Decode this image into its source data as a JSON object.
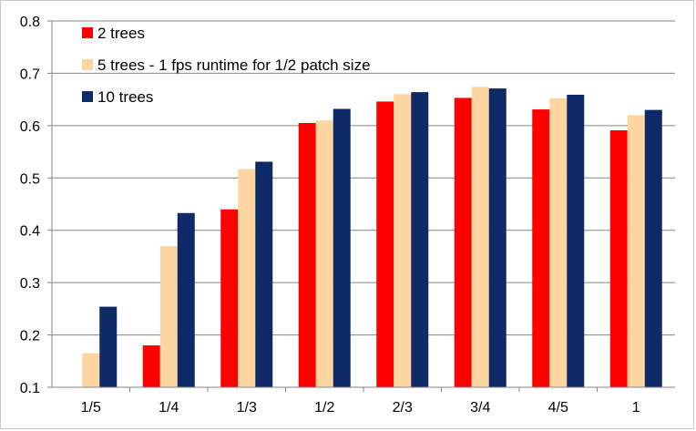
{
  "chart_data": {
    "type": "bar",
    "categories": [
      "1/5",
      "1/4",
      "1/3",
      "1/2",
      "2/3",
      "3/4",
      "4/5",
      "1"
    ],
    "series": [
      {
        "name": "2 trees",
        "color": "#ff0000",
        "values": [
          null,
          0.18,
          0.44,
          0.605,
          0.646,
          0.653,
          0.631,
          0.591
        ]
      },
      {
        "name": "5 trees - 1 fps runtime for 1/2 patch size",
        "color": "#fcd5a0",
        "values": [
          0.165,
          0.37,
          0.517,
          0.61,
          0.66,
          0.674,
          0.652,
          0.62
        ]
      },
      {
        "name": "10 trees",
        "color": "#0f2a69",
        "values": [
          0.254,
          0.433,
          0.531,
          0.632,
          0.664,
          0.671,
          0.659,
          0.63
        ]
      }
    ],
    "ylim": [
      0.1,
      0.8
    ],
    "yticks": [
      "0.1",
      "0.2",
      "0.3",
      "0.4",
      "0.5",
      "0.6",
      "0.7",
      "0.8"
    ],
    "ytick_values": [
      0.1,
      0.2,
      0.3,
      0.4,
      0.5,
      0.6,
      0.7,
      0.8
    ],
    "grid": true,
    "legend_position": "top-left",
    "gridline_color": "#868686"
  }
}
